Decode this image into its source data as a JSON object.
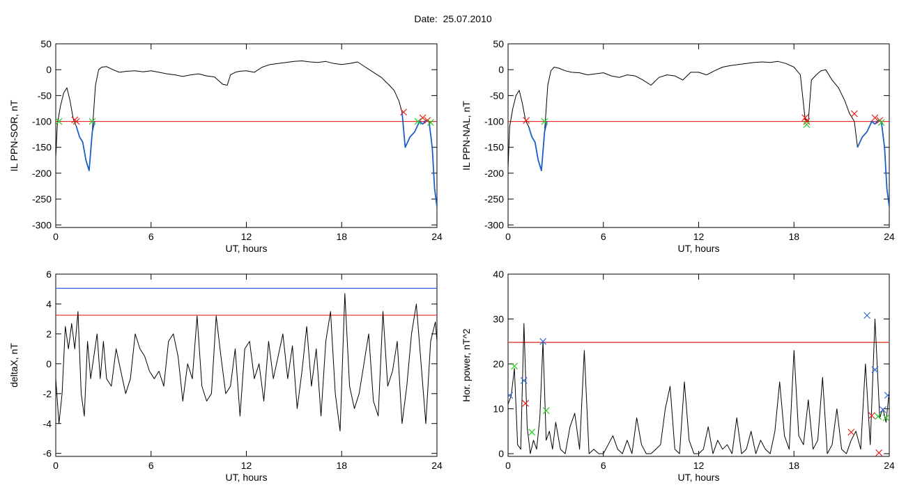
{
  "page_title": "Date:  25.07.2010",
  "colors": {
    "trace": "#000000",
    "threshold_red": "#e8231c",
    "threshold_blue": "#2b6bd6",
    "segment_blue": "#1a5fc8",
    "marker_red": "#e8231c",
    "marker_green": "#22cc22",
    "marker_blue": "#2b6bd6"
  },
  "chart_data": [
    {
      "type": "line",
      "xlabel": "UT, hours",
      "ylabel": "IL PPN-SOR, nT",
      "xlim": [
        0,
        24
      ],
      "ylim": [
        -305,
        50
      ],
      "xticks": [
        0,
        6,
        12,
        18,
        24
      ],
      "yticks": [
        50,
        0,
        -50,
        -100,
        -150,
        -200,
        -250,
        -300
      ],
      "threshold_lines": [
        {
          "y": -100,
          "color": "red"
        }
      ],
      "grid": false,
      "series": [
        {
          "color": "black",
          "x": [
            0,
            0.1,
            0.3,
            0.5,
            0.7,
            0.9,
            1.1,
            1.3,
            1.5,
            1.7,
            1.9,
            2.1,
            2.3,
            2.5,
            2.7,
            2.9,
            3.2,
            3.6,
            4.0,
            4.5,
            5.0,
            5.5,
            6.0,
            6.5,
            7.0,
            7.5,
            8.0,
            8.5,
            9.0,
            9.5,
            10.0,
            10.5,
            10.8,
            11.0,
            11.3,
            11.6,
            12.0,
            12.5,
            13.0,
            13.5,
            14.0,
            14.5,
            15.0,
            15.5,
            16.0,
            16.5,
            17.0,
            17.5,
            18.0,
            18.5,
            19.0,
            19.5,
            20.0,
            20.5,
            21.0,
            21.3,
            21.6,
            21.8,
            22.0,
            22.3,
            22.6,
            22.9,
            23.1,
            23.3,
            23.5,
            23.7,
            23.85,
            24.0
          ],
          "y": [
            -170,
            -105,
            -70,
            -45,
            -35,
            -60,
            -95,
            -110,
            -130,
            -140,
            -175,
            -195,
            -120,
            -30,
            0,
            5,
            6,
            0,
            -5,
            -3,
            -2,
            -4,
            -2,
            -5,
            -8,
            -10,
            -13,
            -10,
            -8,
            -12,
            -14,
            -28,
            -30,
            -10,
            -5,
            -3,
            -2,
            -5,
            5,
            10,
            12,
            14,
            16,
            17,
            15,
            14,
            16,
            12,
            10,
            12,
            15,
            5,
            -5,
            -15,
            -30,
            -40,
            -60,
            -82,
            -150,
            -130,
            -120,
            -100,
            -105,
            -98,
            -100,
            -150,
            -230,
            -265
          ]
        },
        {
          "color": "blue",
          "x": [
            1.3,
            1.5,
            1.7,
            1.9,
            2.1,
            2.3,
            2.45
          ],
          "y": [
            -110,
            -130,
            -140,
            -175,
            -195,
            -120,
            -100
          ]
        },
        {
          "color": "blue",
          "x": [
            21.8,
            22.0,
            22.3,
            22.6,
            22.9,
            23.1,
            23.3,
            23.5,
            23.7,
            23.85,
            24.0
          ],
          "y": [
            -82,
            -150,
            -130,
            -120,
            -100,
            -105,
            -98,
            -100,
            -150,
            -230,
            -265
          ]
        }
      ],
      "markers": [
        {
          "x": 0.2,
          "y": -100,
          "color": "green",
          "symbol": "x"
        },
        {
          "x": 1.2,
          "y": -97,
          "color": "red",
          "symbol": "x"
        },
        {
          "x": 1.3,
          "y": -100,
          "color": "red",
          "symbol": "x"
        },
        {
          "x": 2.3,
          "y": -100,
          "color": "green",
          "symbol": "x"
        },
        {
          "x": 21.9,
          "y": -82,
          "color": "red",
          "symbol": "x"
        },
        {
          "x": 22.8,
          "y": -100,
          "color": "green",
          "symbol": "x"
        },
        {
          "x": 23.1,
          "y": -93,
          "color": "red",
          "symbol": "x"
        },
        {
          "x": 23.4,
          "y": -98,
          "color": "red",
          "symbol": "x"
        },
        {
          "x": 23.6,
          "y": -102,
          "color": "green",
          "symbol": "x"
        }
      ]
    },
    {
      "type": "line",
      "xlabel": "UT, hours",
      "ylabel": "IL PPN-NAL, nT",
      "xlim": [
        0,
        24
      ],
      "ylim": [
        -305,
        50
      ],
      "xticks": [
        0,
        6,
        12,
        18,
        24
      ],
      "yticks": [
        50,
        0,
        -50,
        -100,
        -150,
        -200,
        -250,
        -300
      ],
      "threshold_lines": [
        {
          "y": -100,
          "color": "red"
        }
      ],
      "grid": false,
      "series": [
        {
          "color": "black",
          "x": [
            0,
            0.1,
            0.3,
            0.5,
            0.7,
            0.9,
            1.1,
            1.3,
            1.5,
            1.7,
            1.9,
            2.1,
            2.3,
            2.5,
            2.7,
            2.9,
            3.2,
            3.6,
            4.0,
            4.5,
            5.0,
            5.5,
            6.0,
            6.5,
            7.0,
            7.5,
            8.0,
            8.5,
            9.0,
            9.5,
            10.0,
            10.5,
            11.0,
            11.5,
            12.0,
            12.5,
            13.0,
            13.5,
            14.0,
            14.5,
            15.0,
            15.5,
            16.0,
            16.5,
            17.0,
            17.5,
            18.0,
            18.4,
            18.7,
            18.9,
            19.1,
            19.4,
            19.7,
            20.0,
            20.4,
            20.8,
            21.2,
            21.5,
            21.8,
            22.0,
            22.3,
            22.6,
            22.9,
            23.1,
            23.3,
            23.5,
            23.7,
            23.85,
            24.0
          ],
          "y": [
            -190,
            -110,
            -75,
            -50,
            -40,
            -65,
            -98,
            -110,
            -130,
            -140,
            -175,
            -195,
            -120,
            -30,
            -2,
            5,
            3,
            -2,
            -5,
            -6,
            -10,
            -8,
            -6,
            -12,
            -15,
            -10,
            -12,
            -20,
            -30,
            -15,
            -10,
            -12,
            -20,
            -5,
            -5,
            -10,
            -2,
            5,
            8,
            10,
            12,
            14,
            15,
            14,
            16,
            12,
            5,
            -10,
            -95,
            -100,
            -20,
            -10,
            -2,
            0,
            -20,
            -35,
            -60,
            -85,
            -100,
            -150,
            -130,
            -120,
            -100,
            -105,
            -98,
            -100,
            -150,
            -230,
            -265
          ]
        },
        {
          "color": "blue",
          "x": [
            1.3,
            1.5,
            1.7,
            1.9,
            2.1,
            2.3,
            2.45
          ],
          "y": [
            -110,
            -130,
            -140,
            -175,
            -195,
            -120,
            -100
          ]
        },
        {
          "color": "blue",
          "x": [
            22.0,
            22.3,
            22.6,
            22.9,
            23.1,
            23.3,
            23.5,
            23.7,
            23.85,
            24.0
          ],
          "y": [
            -150,
            -130,
            -120,
            -100,
            -105,
            -98,
            -100,
            -150,
            -230,
            -265
          ]
        }
      ],
      "markers": [
        {
          "x": 1.15,
          "y": -98,
          "color": "red",
          "symbol": "x"
        },
        {
          "x": 2.3,
          "y": -100,
          "color": "green",
          "symbol": "x"
        },
        {
          "x": 18.7,
          "y": -93,
          "color": "red",
          "symbol": "x"
        },
        {
          "x": 18.8,
          "y": -100,
          "color": "red",
          "symbol": "x"
        },
        {
          "x": 18.8,
          "y": -106,
          "color": "green",
          "symbol": "x"
        },
        {
          "x": 21.8,
          "y": -85,
          "color": "red",
          "symbol": "x"
        },
        {
          "x": 23.1,
          "y": -93,
          "color": "red",
          "symbol": "x"
        },
        {
          "x": 23.4,
          "y": -98,
          "color": "red",
          "symbol": "x"
        },
        {
          "x": 23.5,
          "y": -102,
          "color": "green",
          "symbol": "x"
        }
      ]
    },
    {
      "type": "line",
      "xlabel": "UT, hours",
      "ylabel": "deltaX, nT",
      "xlim": [
        0,
        24
      ],
      "ylim": [
        -6.2,
        6
      ],
      "xticks": [
        0,
        6,
        12,
        18,
        24
      ],
      "yticks": [
        6,
        4,
        2,
        0,
        -2,
        -4,
        -6
      ],
      "threshold_lines": [
        {
          "y": 5.05,
          "color": "blue"
        },
        {
          "y": 3.25,
          "color": "red"
        }
      ],
      "grid": false,
      "series": [
        {
          "color": "black",
          "x": [
            0,
            0.2,
            0.4,
            0.6,
            0.8,
            1.0,
            1.2,
            1.4,
            1.6,
            1.8,
            2.0,
            2.2,
            2.4,
            2.6,
            2.8,
            3.0,
            3.2,
            3.5,
            3.8,
            4.1,
            4.4,
            4.7,
            5.0,
            5.3,
            5.6,
            5.9,
            6.2,
            6.5,
            6.8,
            7.1,
            7.4,
            7.7,
            8.0,
            8.3,
            8.6,
            8.9,
            9.2,
            9.5,
            9.8,
            10.1,
            10.4,
            10.7,
            11.0,
            11.3,
            11.6,
            11.9,
            12.2,
            12.5,
            12.8,
            13.1,
            13.4,
            13.7,
            14.0,
            14.3,
            14.6,
            14.9,
            15.2,
            15.5,
            15.8,
            16.1,
            16.4,
            16.7,
            17.0,
            17.3,
            17.6,
            17.9,
            18.2,
            18.5,
            18.8,
            19.1,
            19.4,
            19.7,
            20.0,
            20.3,
            20.6,
            20.9,
            21.2,
            21.5,
            21.8,
            22.1,
            22.4,
            22.7,
            23.0,
            23.3,
            23.6,
            23.9,
            24.0
          ],
          "y": [
            -1,
            -4,
            -2,
            2.5,
            1,
            2.7,
            1,
            3.5,
            -2,
            -3.5,
            1.5,
            -1,
            0.5,
            2,
            -1,
            1.5,
            -1,
            -1.5,
            1,
            -0.5,
            -2,
            -1,
            2,
            1,
            0.5,
            -0.5,
            -1,
            -0.5,
            -1.5,
            1.5,
            2,
            0.5,
            -2.5,
            0,
            -1,
            3.2,
            -1.5,
            -2.5,
            -2,
            3.2,
            0.5,
            -2,
            -1.5,
            1,
            -3.5,
            1,
            1.5,
            -1,
            0,
            -2.5,
            1.5,
            -1,
            0.5,
            2,
            -1,
            1.2,
            -3,
            -0.5,
            2.5,
            -1.5,
            1,
            -3.5,
            1.5,
            3.5,
            -2,
            -4.5,
            4.7,
            -1.5,
            -3,
            -2,
            0,
            2,
            -2.5,
            -3.5,
            3.5,
            -1.5,
            -0.5,
            1.5,
            -4,
            -1.5,
            2,
            4,
            0,
            -4,
            1.5,
            2.8,
            1.5
          ]
        }
      ],
      "markers": []
    },
    {
      "type": "line",
      "xlabel": "UT, hours",
      "ylabel": "Hor. power, nT^2",
      "xlim": [
        0,
        24
      ],
      "ylim": [
        -0.6,
        40
      ],
      "xticks": [
        0,
        6,
        12,
        18,
        24
      ],
      "yticks": [
        40,
        30,
        20,
        10,
        0
      ],
      "threshold_lines": [
        {
          "y": 24.8,
          "color": "red"
        }
      ],
      "grid": false,
      "series": [
        {
          "color": "black",
          "x": [
            0,
            0.2,
            0.4,
            0.6,
            0.8,
            1.0,
            1.2,
            1.4,
            1.6,
            1.8,
            2.0,
            2.2,
            2.4,
            2.6,
            2.8,
            3.0,
            3.3,
            3.6,
            3.9,
            4.2,
            4.5,
            4.8,
            5.1,
            5.4,
            5.7,
            6.0,
            6.3,
            6.6,
            6.9,
            7.2,
            7.5,
            7.8,
            8.1,
            8.4,
            8.7,
            9.0,
            9.3,
            9.6,
            9.9,
            10.2,
            10.5,
            10.8,
            11.1,
            11.4,
            11.7,
            12.0,
            12.3,
            12.6,
            12.9,
            13.2,
            13.5,
            13.8,
            14.1,
            14.4,
            14.7,
            15.0,
            15.3,
            15.6,
            15.9,
            16.2,
            16.5,
            16.8,
            17.1,
            17.4,
            17.7,
            18.0,
            18.3,
            18.6,
            18.9,
            19.2,
            19.5,
            19.8,
            20.1,
            20.4,
            20.7,
            21.0,
            21.3,
            21.6,
            21.9,
            22.2,
            22.5,
            22.8,
            23.1,
            23.4,
            23.6,
            23.8,
            24.0
          ],
          "y": [
            11,
            13,
            19,
            2,
            1,
            29,
            6,
            0,
            3,
            1,
            8,
            25,
            3,
            5,
            1,
            7,
            1,
            0,
            6,
            9,
            1,
            23,
            0,
            1,
            0,
            0,
            2,
            4,
            1,
            0,
            3,
            0,
            8,
            2,
            0,
            0,
            1,
            2,
            10,
            15,
            1,
            0,
            16,
            3,
            0,
            0,
            1,
            6,
            0,
            3,
            1,
            2,
            0,
            8,
            0,
            1,
            5,
            0,
            3,
            1,
            0,
            5,
            16,
            4,
            1,
            23,
            4,
            2,
            12,
            1,
            3,
            17,
            0,
            2,
            10,
            1,
            0,
            3,
            5,
            1,
            20,
            2,
            30,
            8,
            10,
            7,
            14
          ]
        }
      ],
      "markers": [
        {
          "x": 0.1,
          "y": 13,
          "color": "blue",
          "symbol": "x"
        },
        {
          "x": 0.4,
          "y": 19.5,
          "color": "green",
          "symbol": "x"
        },
        {
          "x": 1.0,
          "y": 16.3,
          "color": "blue",
          "symbol": "x"
        },
        {
          "x": 1.1,
          "y": 11.2,
          "color": "red",
          "symbol": "x"
        },
        {
          "x": 1.5,
          "y": 4.8,
          "color": "green",
          "symbol": "x"
        },
        {
          "x": 2.2,
          "y": 25,
          "color": "blue",
          "symbol": "x"
        },
        {
          "x": 2.4,
          "y": 9.6,
          "color": "green",
          "symbol": "x"
        },
        {
          "x": 21.6,
          "y": 4.8,
          "color": "red",
          "symbol": "x"
        },
        {
          "x": 22.6,
          "y": 30.8,
          "color": "blue",
          "symbol": "x"
        },
        {
          "x": 22.9,
          "y": 8.5,
          "color": "red",
          "symbol": "x"
        },
        {
          "x": 23.1,
          "y": 18.7,
          "color": "blue",
          "symbol": "x"
        },
        {
          "x": 23.3,
          "y": 8.3,
          "color": "green",
          "symbol": "x"
        },
        {
          "x": 23.35,
          "y": 0.2,
          "color": "red",
          "symbol": "x"
        },
        {
          "x": 23.6,
          "y": 9.8,
          "color": "blue",
          "symbol": "x"
        },
        {
          "x": 23.8,
          "y": 8.0,
          "color": "green",
          "symbol": "x"
        },
        {
          "x": 23.9,
          "y": 13.0,
          "color": "blue",
          "symbol": "x"
        }
      ]
    }
  ]
}
